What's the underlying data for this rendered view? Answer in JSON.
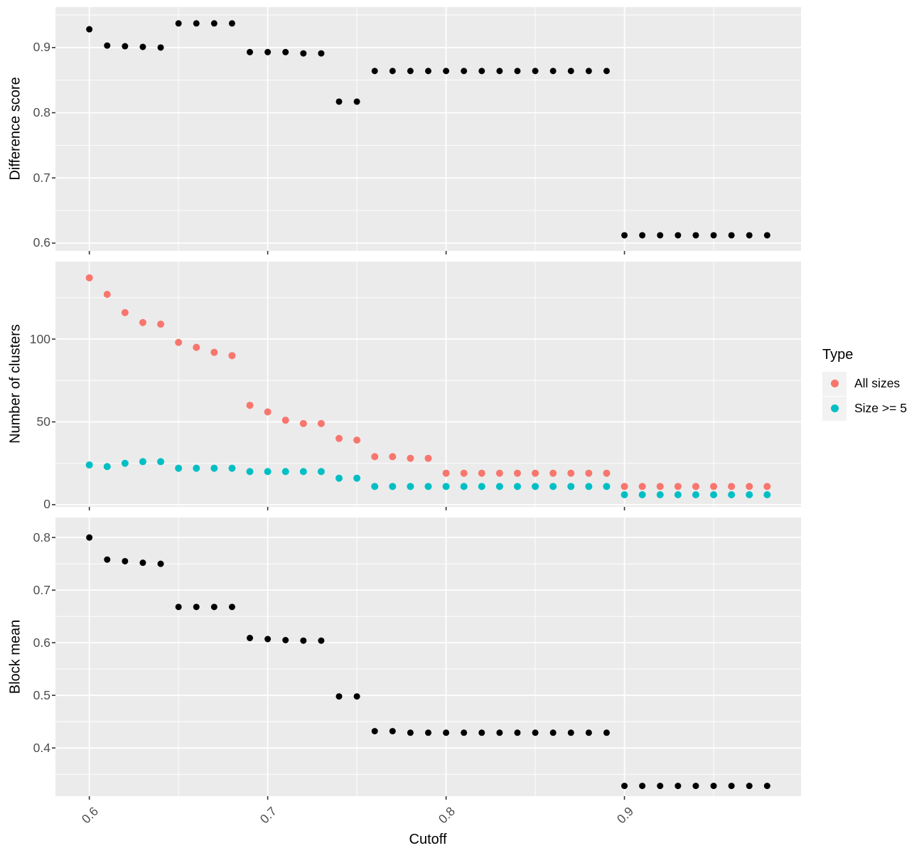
{
  "colors": {
    "panel_bg": "#EBEBEB",
    "grid": "#FFFFFF",
    "axis_text": "#4D4D4D",
    "tick_mark": "#333333",
    "title_text": "#000000",
    "legend_key_bg": "#F2F2F2",
    "point_black": "#000000",
    "all_sizes": "#F8766D",
    "size_ge5": "#00BFC4"
  },
  "chart_data": {
    "type": "scatter",
    "x_label": "Cutoff",
    "xlim": [
      0.581,
      0.999
    ],
    "x_ticks": {
      "values": [
        0.6,
        0.7,
        0.8,
        0.9
      ],
      "labels": [
        "0.6",
        "0.7",
        "0.8",
        "0.9"
      ]
    },
    "x": [
      0.6,
      0.61,
      0.62,
      0.63,
      0.64,
      0.65,
      0.66,
      0.67,
      0.68,
      0.69,
      0.7,
      0.71,
      0.72,
      0.73,
      0.74,
      0.75,
      0.76,
      0.77,
      0.78,
      0.79,
      0.8,
      0.81,
      0.82,
      0.83,
      0.84,
      0.85,
      0.86,
      0.87,
      0.88,
      0.89,
      0.9,
      0.91,
      0.92,
      0.93,
      0.94,
      0.95,
      0.96,
      0.97,
      0.98
    ],
    "legend": {
      "title": "Type",
      "position": "right",
      "items": [
        {
          "label": "All sizes",
          "color": "#F8766D"
        },
        {
          "label": "Size >= 5",
          "color": "#00BFC4"
        }
      ]
    },
    "panels": [
      {
        "ylabel": "Difference score",
        "yticks": [
          0.6,
          0.7,
          0.8,
          0.9
        ],
        "ytick_labels": [
          "0.6",
          "0.7",
          "0.8",
          "0.9"
        ],
        "ylim": [
          0.588,
          0.962
        ],
        "grid": true,
        "series": [
          {
            "name": "Difference score",
            "color": "#000000",
            "values": [
              0.928,
              0.903,
              0.902,
              0.901,
              0.9,
              0.937,
              0.937,
              0.937,
              0.937,
              0.893,
              0.893,
              0.893,
              0.891,
              0.891,
              0.817,
              0.817,
              0.864,
              0.864,
              0.864,
              0.864,
              0.864,
              0.864,
              0.864,
              0.864,
              0.864,
              0.864,
              0.864,
              0.864,
              0.864,
              0.864,
              0.612,
              0.612,
              0.612,
              0.612,
              0.612,
              0.612,
              0.612,
              0.612,
              0.612
            ]
          }
        ]
      },
      {
        "ylabel": "Number of clusters",
        "yticks": [
          0,
          50,
          100
        ],
        "ytick_labels": [
          "0",
          "50",
          "100"
        ],
        "ylim": [
          -1.3,
          146.8
        ],
        "grid": true,
        "series": [
          {
            "name": "All sizes",
            "color": "#F8766D",
            "values": [
              137,
              127,
              116,
              110,
              109,
              98,
              95,
              92,
              90,
              60,
              56,
              51,
              49,
              49,
              40,
              39,
              29,
              29,
              28,
              28,
              19,
              19,
              19,
              19,
              19,
              19,
              19,
              19,
              19,
              19,
              11,
              11,
              11,
              11,
              11,
              11,
              11,
              11,
              11
            ]
          },
          {
            "name": "Size >= 5",
            "color": "#00BFC4",
            "values": [
              24,
              23,
              25,
              26,
              26,
              22,
              22,
              22,
              22,
              20,
              20,
              20,
              20,
              20,
              16,
              16,
              11,
              11,
              11,
              11,
              11,
              11,
              11,
              11,
              11,
              11,
              11,
              11,
              11,
              11,
              6,
              6,
              6,
              6,
              6,
              6,
              6,
              6,
              6
            ]
          }
        ]
      },
      {
        "ylabel": "Block mean",
        "yticks": [
          0.4,
          0.5,
          0.6,
          0.7,
          0.8
        ],
        "ytick_labels": [
          "0.4",
          "0.5",
          "0.6",
          "0.7",
          "0.8"
        ],
        "ylim": [
          0.3085,
          0.838
        ],
        "grid": true,
        "series": [
          {
            "name": "Block mean",
            "color": "#000000",
            "values": [
              0.8,
              0.758,
              0.755,
              0.752,
              0.75,
              0.668,
              0.668,
              0.668,
              0.668,
              0.609,
              0.607,
              0.605,
              0.604,
              0.604,
              0.498,
              0.498,
              0.432,
              0.432,
              0.429,
              0.429,
              0.429,
              0.429,
              0.429,
              0.429,
              0.429,
              0.429,
              0.429,
              0.429,
              0.429,
              0.429,
              0.328,
              0.328,
              0.328,
              0.328,
              0.328,
              0.328,
              0.328,
              0.328,
              0.328
            ]
          }
        ]
      }
    ]
  }
}
